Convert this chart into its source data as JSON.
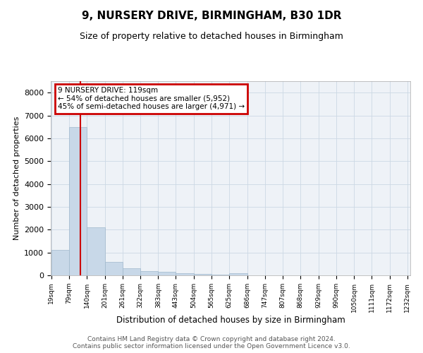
{
  "title": "9, NURSERY DRIVE, BIRMINGHAM, B30 1DR",
  "subtitle": "Size of property relative to detached houses in Birmingham",
  "xlabel": "Distribution of detached houses by size in Birmingham",
  "ylabel": "Number of detached properties",
  "annotation_line1": "9 NURSERY DRIVE: 119sqm",
  "annotation_line2": "← 54% of detached houses are smaller (5,952)",
  "annotation_line3": "45% of semi-detached houses are larger (4,971) →",
  "footer_line1": "Contains HM Land Registry data © Crown copyright and database right 2024.",
  "footer_line2": "Contains public sector information licensed under the Open Government Licence v3.0.",
  "bar_edges": [
    19,
    79,
    140,
    201,
    261,
    322,
    383,
    443,
    504,
    565,
    625,
    686,
    747,
    807,
    868,
    929,
    990,
    1050,
    1111,
    1172,
    1232
  ],
  "bar_heights": [
    1100,
    6500,
    2100,
    600,
    320,
    200,
    150,
    80,
    50,
    30,
    100,
    0,
    0,
    0,
    0,
    0,
    0,
    0,
    0,
    0
  ],
  "property_size": 119,
  "bar_color": "#c8d8e8",
  "bar_edge_color": "#a0b8cc",
  "line_color": "#cc0000",
  "annotation_box_edgecolor": "#cc0000",
  "grid_color": "#ccd8e4",
  "plot_bg_color": "#eef2f7",
  "ylim": [
    0,
    8500
  ],
  "yticks": [
    0,
    1000,
    2000,
    3000,
    4000,
    5000,
    6000,
    7000,
    8000
  ]
}
